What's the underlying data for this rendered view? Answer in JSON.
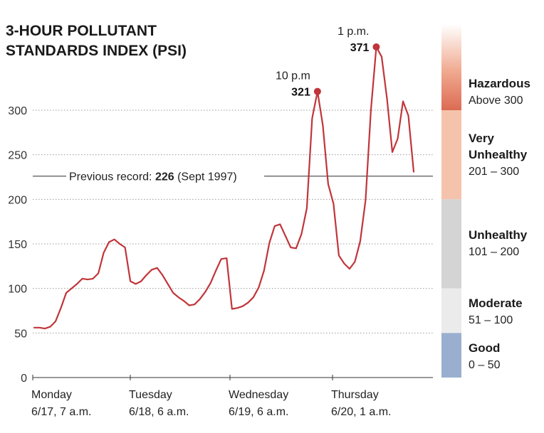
{
  "chart_data": {
    "type": "line",
    "title_lines": [
      "3-HOUR POLLUTANT",
      "STANDARDS INDEX (PSI)"
    ],
    "ylim": [
      0,
      400
    ],
    "y_ticks": [
      0,
      50,
      100,
      150,
      200,
      250,
      300
    ],
    "grid": "dotted horizontal",
    "x_ticks": [
      {
        "day": "Monday",
        "date": "6/17, 7 a.m."
      },
      {
        "day": "Tuesday",
        "date": "6/18, 6 a.m."
      },
      {
        "day": "Wednesday",
        "date": "6/19, 6 a.m."
      },
      {
        "day": "Thursday",
        "date": "6/20, 1 a.m."
      }
    ],
    "series": [
      {
        "color": "#c0353a",
        "values": [
          56,
          56,
          55,
          57,
          63,
          78,
          95,
          100,
          105,
          111,
          110,
          111,
          117,
          140,
          152,
          155,
          150,
          146,
          108,
          105,
          108,
          115,
          121,
          123,
          115,
          105,
          95,
          90,
          86,
          81,
          82,
          88,
          96,
          106,
          120,
          133,
          134,
          77,
          78,
          80,
          84,
          90,
          101,
          120,
          151,
          170,
          172,
          159,
          146,
          145,
          161,
          190,
          291,
          321,
          283,
          217,
          195,
          137,
          128,
          122,
          130,
          153,
          199,
          300,
          371,
          360,
          313,
          253,
          268,
          310,
          294,
          231
        ]
      }
    ],
    "annotations": [
      {
        "time": "10 p.m",
        "value": "321"
      },
      {
        "time": "1 p.m.",
        "value": "371"
      }
    ],
    "reference_line": {
      "prefix": "Previous record: ",
      "value": "226",
      "suffix": " (Sept 1997)",
      "y": 226
    },
    "bands": [
      {
        "name": "Hazardous",
        "lines": [
          "Hazardous"
        ],
        "range": "Above 300",
        "from": 300,
        "to": 400,
        "color": "#dc6b53"
      },
      {
        "name": "Very Unhealthy",
        "lines": [
          "Very",
          "Unhealthy"
        ],
        "range": "201 – 300",
        "from": 200,
        "to": 300,
        "color": "#f5c3ab"
      },
      {
        "name": "Unhealthy",
        "lines": [
          "Unhealthy"
        ],
        "range": "101 – 200",
        "from": 100,
        "to": 200,
        "color": "#d4d4d4"
      },
      {
        "name": "Moderate",
        "lines": [
          "Moderate"
        ],
        "range": "51 – 100",
        "from": 50,
        "to": 100,
        "color": "#ebebeb"
      },
      {
        "name": "Good",
        "lines": [
          "Good"
        ],
        "range": "0 – 50",
        "from": 0,
        "to": 50,
        "color": "#9aafcf"
      }
    ]
  }
}
